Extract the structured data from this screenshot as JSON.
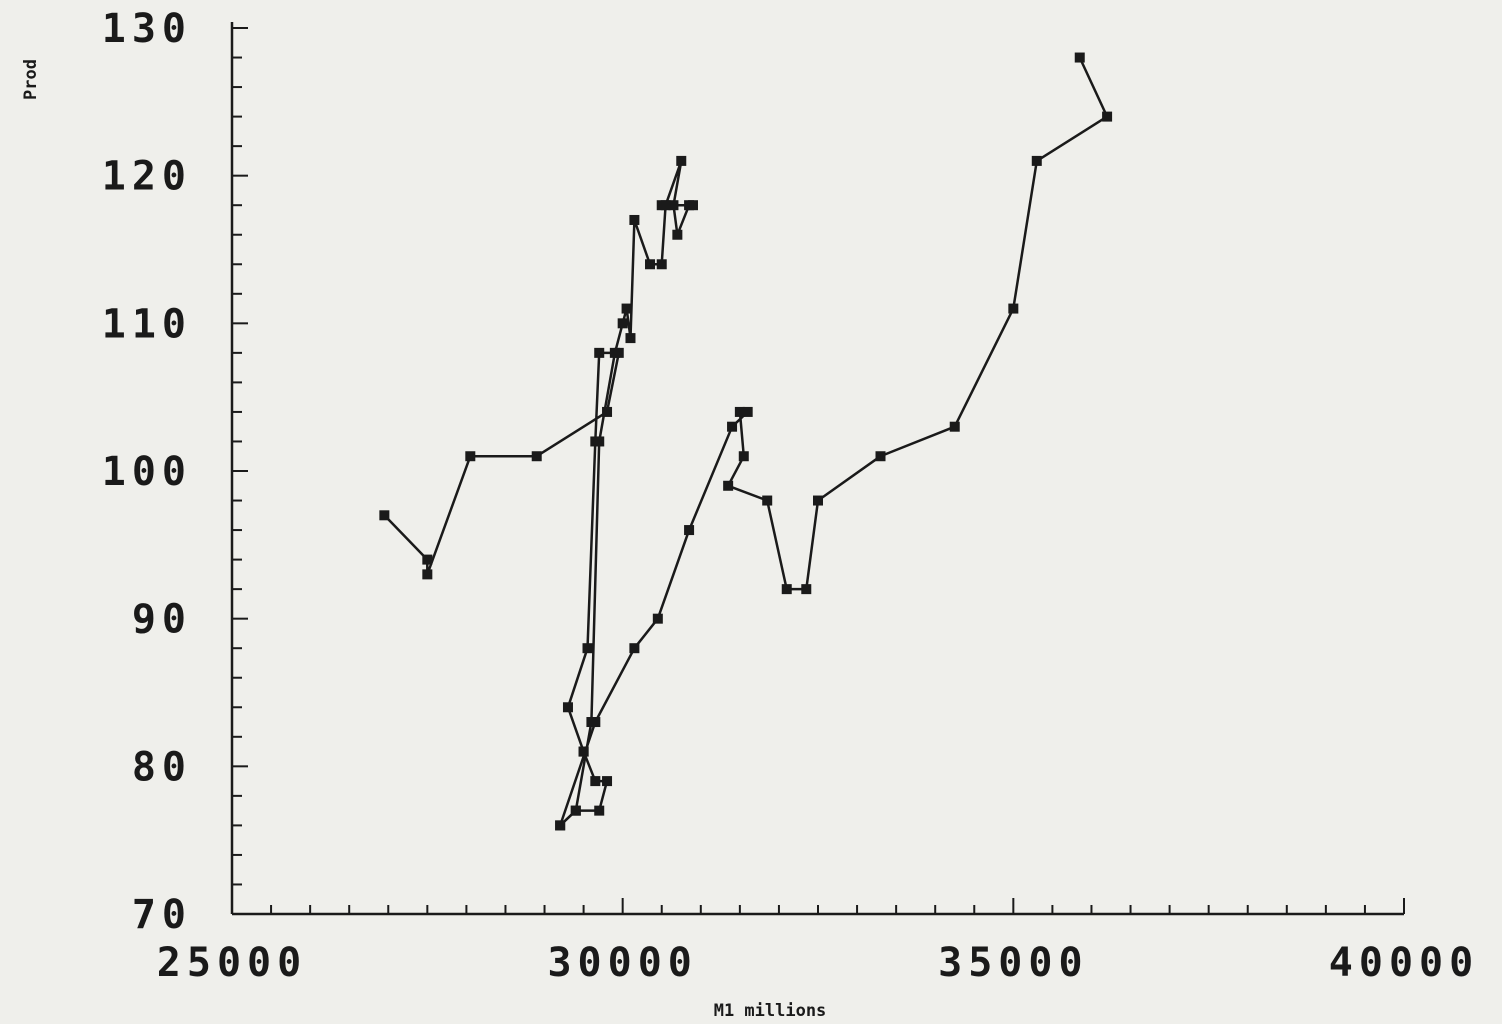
{
  "chart_data": {
    "type": "line",
    "title": "",
    "xlabel": "M1 millions",
    "ylabel": "Prod",
    "xlim": [
      25000,
      40000
    ],
    "ylim": [
      70,
      130
    ],
    "x_ticks": [
      25000,
      30000,
      35000,
      40000
    ],
    "y_ticks": [
      70,
      80,
      90,
      100,
      110,
      120,
      130
    ],
    "grid": false,
    "series": [
      {
        "marker": "square",
        "color": "#1a1a1a",
        "points": [
          [
            26950,
            97
          ],
          [
            27500,
            94
          ],
          [
            27500,
            93
          ],
          [
            28050,
            101
          ],
          [
            28900,
            101
          ],
          [
            29800,
            104
          ],
          [
            29950,
            108
          ],
          [
            29700,
            108
          ],
          [
            29650,
            102
          ],
          [
            29550,
            88
          ],
          [
            29300,
            84
          ],
          [
            29500,
            81
          ],
          [
            29500,
            81
          ],
          [
            29650,
            79
          ],
          [
            29800,
            79
          ],
          [
            29700,
            77
          ],
          [
            29400,
            77
          ],
          [
            29200,
            76
          ],
          [
            29650,
            83
          ],
          [
            30150,
            88
          ],
          [
            30450,
            90
          ],
          [
            30850,
            96
          ],
          [
            31400,
            103
          ],
          [
            31600,
            104
          ],
          [
            31500,
            104
          ],
          [
            31550,
            101
          ],
          [
            31350,
            99
          ],
          [
            31850,
            98
          ],
          [
            32100,
            92
          ],
          [
            32350,
            92
          ],
          [
            32500,
            98
          ],
          [
            33300,
            101
          ],
          [
            34250,
            103
          ],
          [
            35000,
            111
          ],
          [
            35300,
            121
          ],
          [
            36200,
            124
          ],
          [
            35850,
            128
          ]
        ]
      },
      {
        "marker": "square",
        "color": "#1a1a1a",
        "points": [
          [
            29200,
            76
          ],
          [
            29400,
            77
          ],
          [
            29600,
            83
          ],
          [
            29700,
            102
          ],
          [
            29900,
            108
          ],
          [
            30000,
            110
          ],
          [
            30050,
            111
          ],
          [
            30100,
            109
          ],
          [
            30150,
            117
          ],
          [
            30350,
            114
          ],
          [
            30500,
            114
          ],
          [
            30550,
            118
          ],
          [
            30750,
            121
          ],
          [
            30650,
            118
          ],
          [
            30700,
            116
          ],
          [
            30850,
            118
          ],
          [
            30900,
            118
          ],
          [
            30500,
            118
          ]
        ]
      }
    ]
  }
}
